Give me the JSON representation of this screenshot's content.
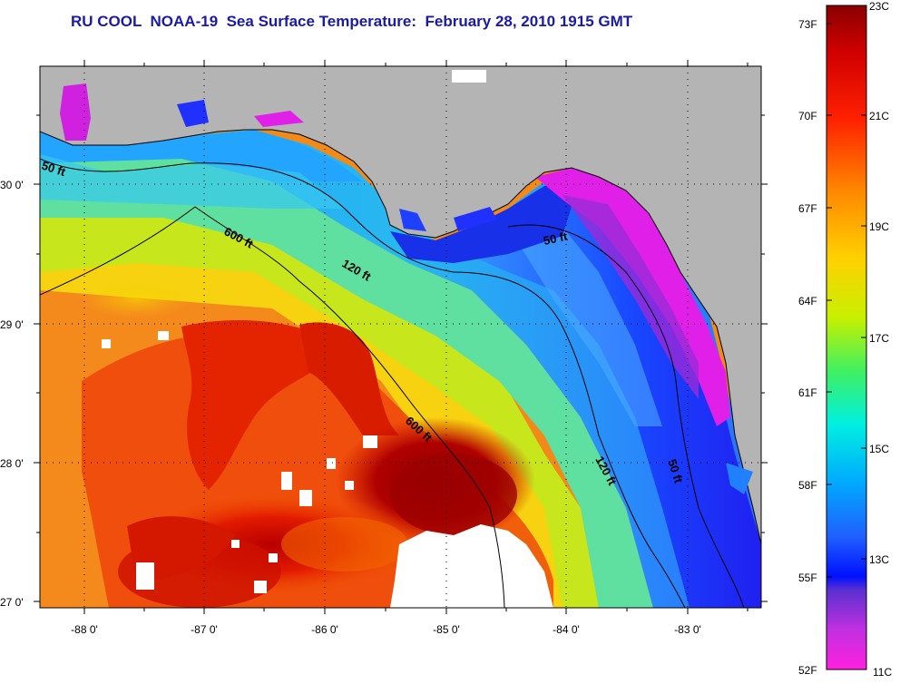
{
  "title": "RU COOL  NOAA-19  Sea Surface Temperature:  February 28, 2010 1915 GMT",
  "map": {
    "longitude_ticks": [
      "-88 0'",
      "-87 0'",
      "-86 0'",
      "-85 0'",
      "-84 0'",
      "-83 0'"
    ],
    "latitude_ticks": [
      "30 0'",
      "29 0'",
      "28 0'",
      "27 0'"
    ],
    "contour_labels": [
      "50 ft",
      "600 ft",
      "120 ft",
      "50 ft",
      "600 ft",
      "120 ft",
      "50 ft"
    ],
    "land_color": "#b4b4b4",
    "cloud_color": "#ffffff"
  },
  "colorbar": {
    "fahrenheit_labels": [
      "73F",
      "70F",
      "67F",
      "64F",
      "61F",
      "58F",
      "55F",
      "52F"
    ],
    "celsius_labels": [
      "23C",
      "21C",
      "19C",
      "17C",
      "15C",
      "13C",
      "11C"
    ]
  }
}
